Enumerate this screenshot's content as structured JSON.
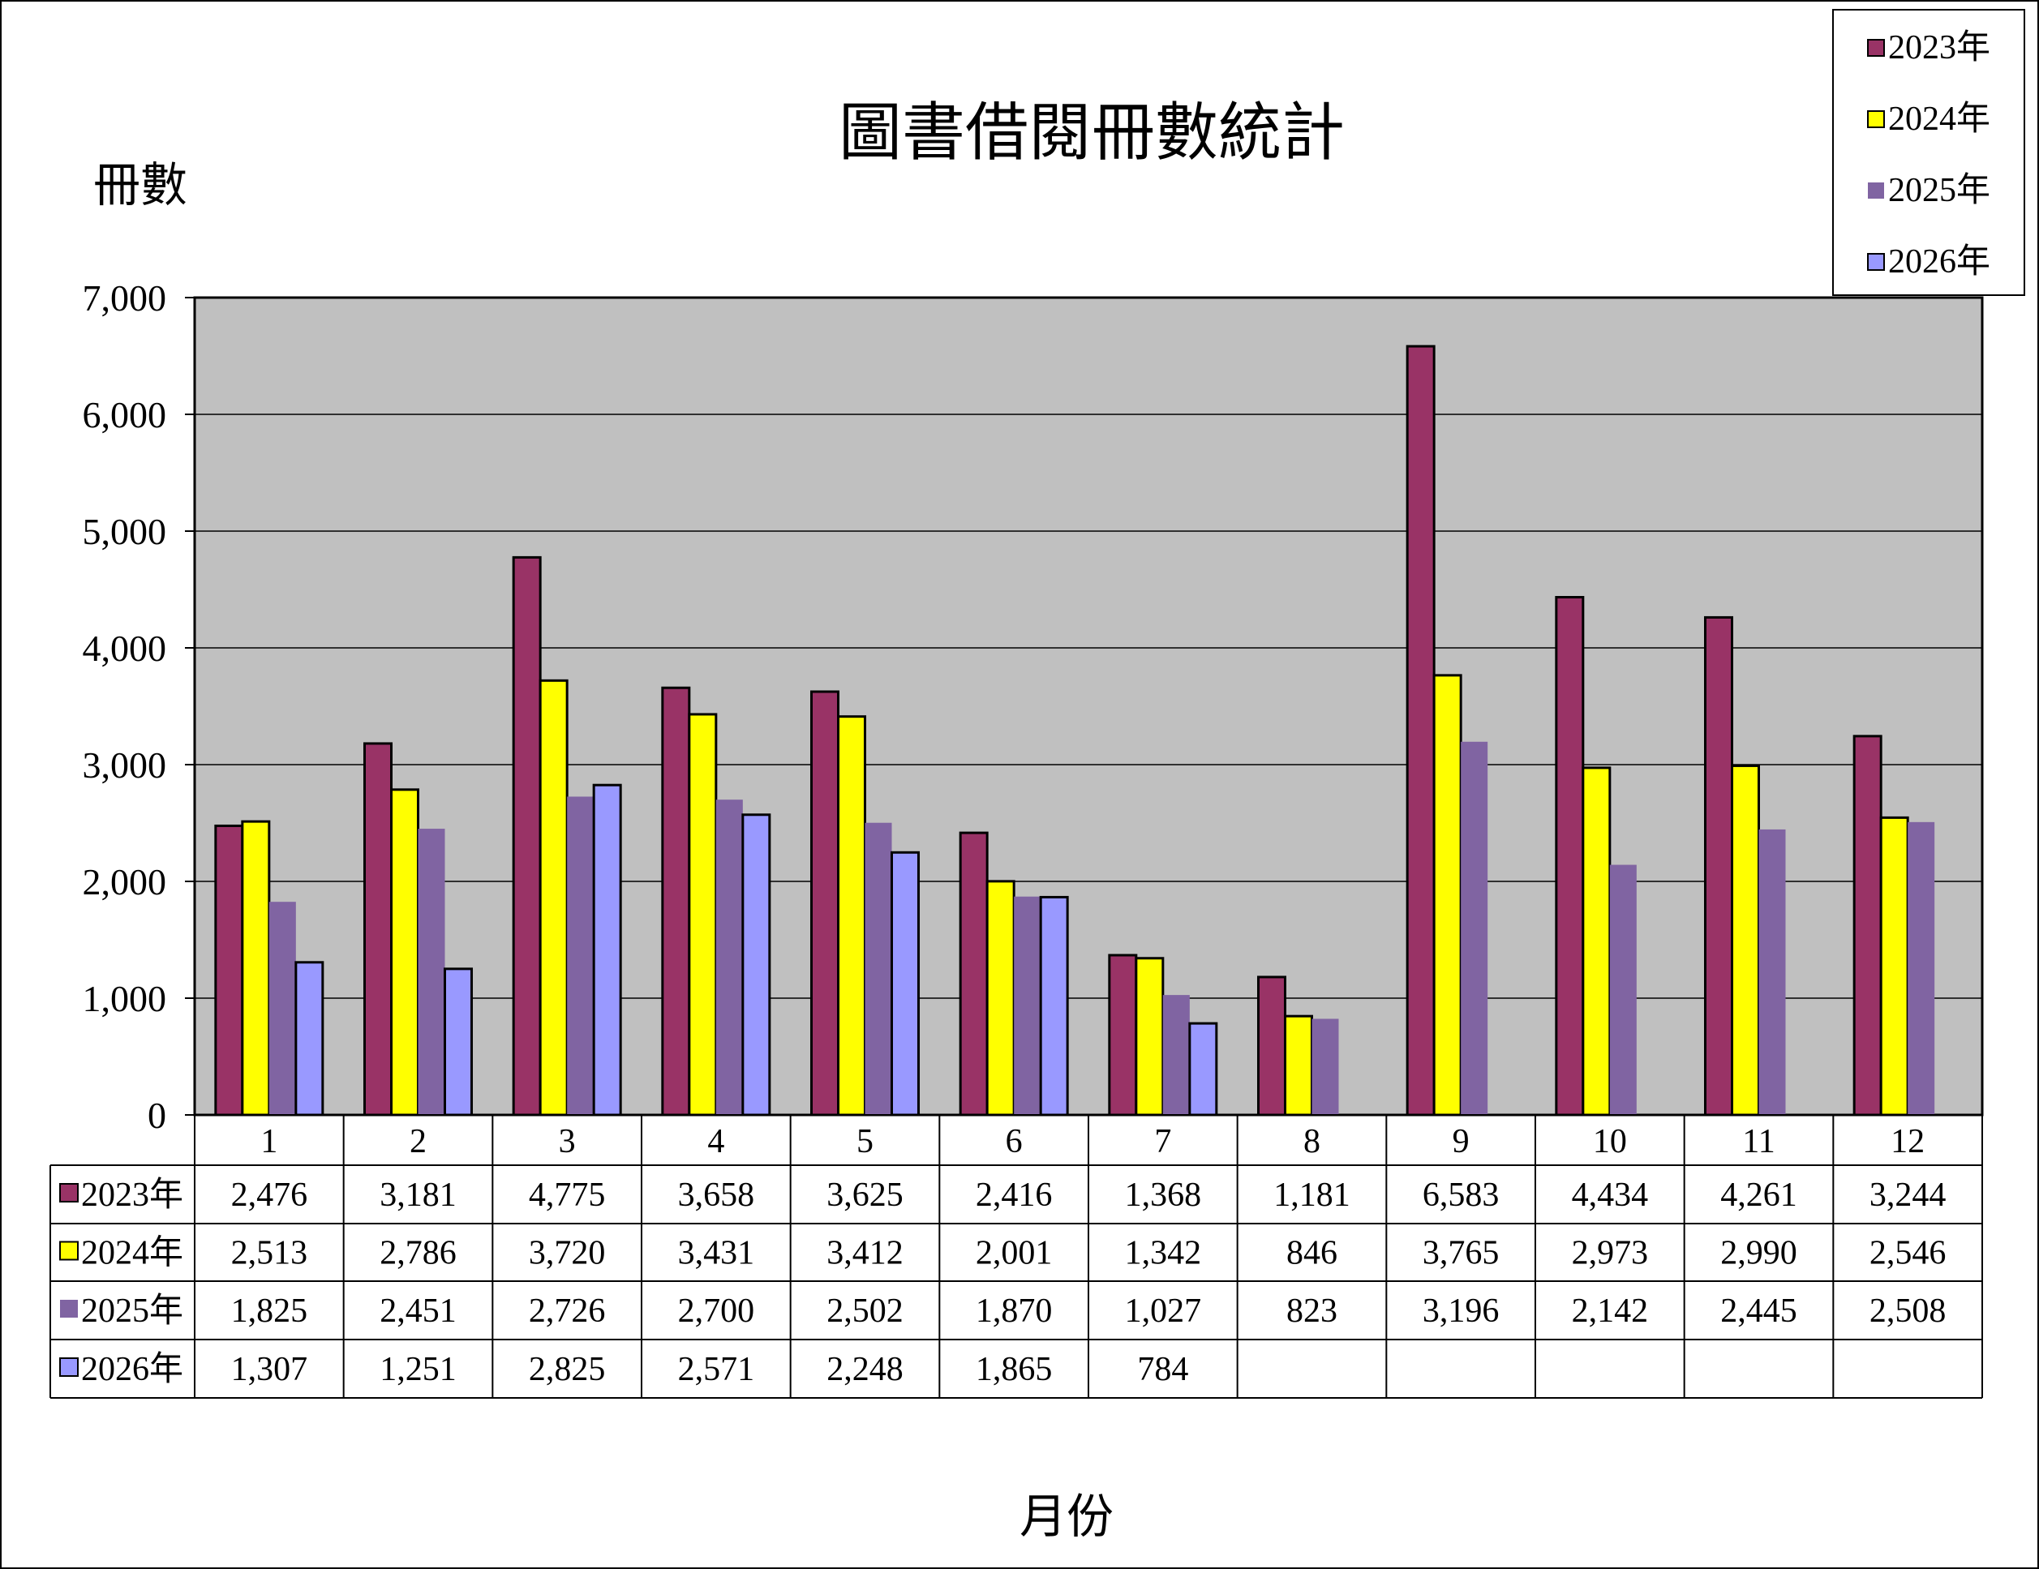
{
  "chart_data": {
    "type": "bar",
    "title": "圖書借閱冊數統計",
    "xlabel": "月份",
    "ylabel": "冊數",
    "categories": [
      "1",
      "2",
      "3",
      "4",
      "5",
      "6",
      "7",
      "8",
      "9",
      "10",
      "11",
      "12"
    ],
    "ylim": [
      0,
      7000
    ],
    "yticks": [
      "0",
      "1,000",
      "2,000",
      "3,000",
      "4,000",
      "5,000",
      "6,000",
      "7,000"
    ],
    "grid": true,
    "legend_position": "top-right",
    "series": [
      {
        "name": "2023年",
        "color": "#993366",
        "values": [
          2476,
          3181,
          4775,
          3658,
          3625,
          2416,
          1368,
          1181,
          6583,
          4434,
          4261,
          3244
        ],
        "labels": [
          "2,476",
          "3,181",
          "4,775",
          "3,658",
          "3,625",
          "2,416",
          "1,368",
          "1,181",
          "6,583",
          "4,434",
          "4,261",
          "3,244"
        ]
      },
      {
        "name": "2024年",
        "color": "#ffff00",
        "values": [
          2513,
          2786,
          3720,
          3431,
          3412,
          2001,
          1342,
          846,
          3765,
          2973,
          2990,
          2546
        ],
        "labels": [
          "2,513",
          "2,786",
          "3,720",
          "3,431",
          "3,412",
          "2,001",
          "1,342",
          "846",
          "3,765",
          "2,973",
          "2,990",
          "2,546"
        ]
      },
      {
        "name": "2025年",
        "color": "#8064a2",
        "values": [
          1825,
          2451,
          2726,
          2700,
          2502,
          1870,
          1027,
          823,
          3196,
          2142,
          2445,
          2508
        ],
        "labels": [
          "1,825",
          "2,451",
          "2,726",
          "2,700",
          "2,502",
          "1,870",
          "1,027",
          "823",
          "3,196",
          "2,142",
          "2,445",
          "2,508"
        ]
      },
      {
        "name": "2026年",
        "color": "#9999ff",
        "values": [
          1307,
          1251,
          2825,
          2571,
          2248,
          1865,
          784,
          null,
          null,
          null,
          null,
          null
        ],
        "labels": [
          "1,307",
          "1,251",
          "2,825",
          "2,571",
          "2,248",
          "1,865",
          "784",
          "",
          "",
          "",
          "",
          ""
        ]
      }
    ]
  }
}
